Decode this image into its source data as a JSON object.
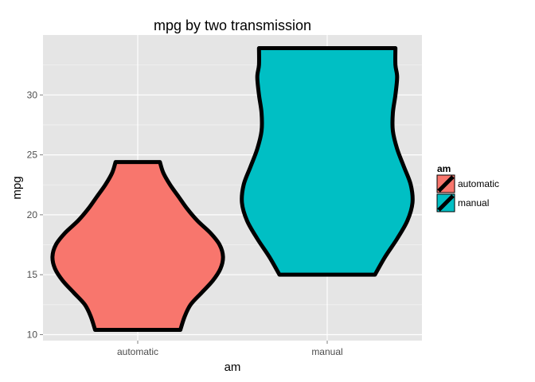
{
  "chart_data": {
    "type": "violin",
    "title": "mpg by two transmission",
    "xlabel": "am",
    "ylabel": "mpg",
    "ylim": [
      9.5,
      35
    ],
    "yticks": [
      10,
      15,
      20,
      25,
      30
    ],
    "grid": true,
    "legend": {
      "title": "am",
      "placement": "right"
    },
    "categories": [
      "automatic",
      "manual"
    ],
    "series": [
      {
        "name": "automatic",
        "color": "#F8766D",
        "min": 10.4,
        "max": 24.4,
        "density_profile": [
          [
            10.4,
            0.5
          ],
          [
            11.5,
            0.55
          ],
          [
            12.5,
            0.62
          ],
          [
            13.5,
            0.75
          ],
          [
            14.5,
            0.88
          ],
          [
            15.5,
            0.97
          ],
          [
            16.5,
            1.0
          ],
          [
            17.5,
            0.96
          ],
          [
            18.5,
            0.85
          ],
          [
            19.5,
            0.7
          ],
          [
            20.5,
            0.58
          ],
          [
            21.5,
            0.48
          ],
          [
            22.5,
            0.38
          ],
          [
            23.5,
            0.3
          ],
          [
            24.4,
            0.26
          ]
        ]
      },
      {
        "name": "manual",
        "color": "#00BFC4",
        "min": 15.0,
        "max": 33.9,
        "density_profile": [
          [
            15.0,
            0.56
          ],
          [
            16.5,
            0.68
          ],
          [
            18.0,
            0.82
          ],
          [
            19.5,
            0.94
          ],
          [
            21.0,
            1.0
          ],
          [
            22.5,
            0.98
          ],
          [
            24.0,
            0.9
          ],
          [
            25.5,
            0.82
          ],
          [
            27.0,
            0.77
          ],
          [
            28.5,
            0.77
          ],
          [
            30.0,
            0.8
          ],
          [
            31.5,
            0.82
          ],
          [
            32.5,
            0.8
          ],
          [
            33.9,
            0.8
          ]
        ]
      }
    ]
  }
}
